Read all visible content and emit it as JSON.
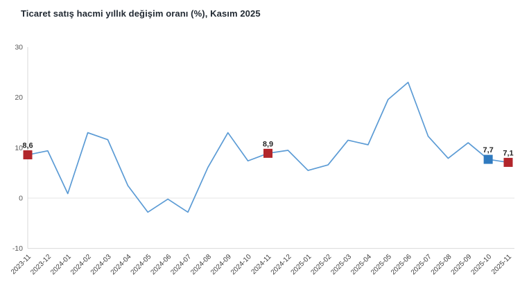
{
  "title": "Ticaret satış hacmi yıllık değişim oranı (%), Kasım 2025",
  "chart_data": {
    "type": "line",
    "title": "Ticaret satış hacmi yıllık değişim oranı (%), Kasım 2025",
    "categories": [
      "2023-11",
      "2023-12",
      "2024-01",
      "2024-02",
      "2024-03",
      "2024-04",
      "2024-05",
      "2024-06",
      "2024-07",
      "2024-08",
      "2024-09",
      "2024-10",
      "2024-11",
      "2024-12",
      "2025-01",
      "2025-02",
      "2025-03",
      "2025-04",
      "2025-05",
      "2025-06",
      "2025-07",
      "2025-08",
      "2025-09",
      "2025-10",
      "2025-11"
    ],
    "values": [
      8.6,
      9.4,
      0.9,
      13.0,
      11.6,
      2.5,
      -2.8,
      -0.2,
      -2.8,
      6.1,
      13.0,
      7.4,
      8.9,
      9.5,
      5.5,
      6.6,
      11.5,
      10.6,
      19.6,
      23.0,
      12.3,
      7.9,
      11.0,
      7.7,
      7.1
    ],
    "markers": [
      {
        "index": 0,
        "label": "8,6",
        "color": "#B2262B"
      },
      {
        "index": 12,
        "label": "8,9",
        "color": "#B2262B"
      },
      {
        "index": 23,
        "label": "7,7",
        "color": "#2F7ABF"
      },
      {
        "index": 24,
        "label": "7,1",
        "color": "#B2262B"
      }
    ],
    "y_axis": {
      "ticks": [
        30,
        20,
        10,
        0,
        -10
      ],
      "min": -10,
      "max": 30
    },
    "xlabel": "",
    "ylabel": "",
    "legend": "none",
    "grid": "zero-line-only",
    "colors": {
      "line": "#5B9BD5",
      "axis_line": "#D9D9D9",
      "zero_line": "#E4E4E4",
      "tick_label": "#595959",
      "x_label": "#404040",
      "data_label": "#262626",
      "title": "#222A33"
    }
  }
}
